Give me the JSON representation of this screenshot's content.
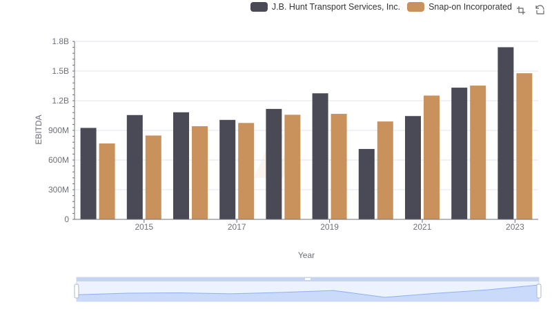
{
  "chart_data": {
    "type": "bar",
    "title": "",
    "xlabel": "Year",
    "ylabel": "EBITDA",
    "ylim": [
      0,
      1800000000
    ],
    "yticks": [
      "0",
      "300M",
      "600M",
      "900M",
      "1.2B",
      "1.5B",
      "1.8B"
    ],
    "categories": [
      "2014",
      "2015",
      "2016",
      "2017",
      "2018",
      "2019",
      "2020",
      "2021",
      "2022",
      "2023"
    ],
    "xtick_labels": [
      "2015",
      "2017",
      "2019",
      "2021",
      "2023"
    ],
    "series": [
      {
        "name": "J.B. Hunt Transport Services, Inc.",
        "color": "#4a4a56",
        "values": [
          925000000,
          1055000000,
          1083000000,
          1006000000,
          1117000000,
          1275000000,
          712000000,
          1045000000,
          1332000000,
          1741000000
        ]
      },
      {
        "name": "Snap-on Incorporated",
        "color": "#c9915c",
        "values": [
          768000000,
          848000000,
          942000000,
          975000000,
          1058000000,
          1067000000,
          990000000,
          1252000000,
          1353000000,
          1478000000
        ]
      }
    ]
  },
  "toolbox": {
    "zoom_icon": "data-zoom-icon",
    "reset_icon": "zoom-reset-icon"
  },
  "datazoom": {
    "range_start_percent": 0,
    "range_end_percent": 100
  }
}
